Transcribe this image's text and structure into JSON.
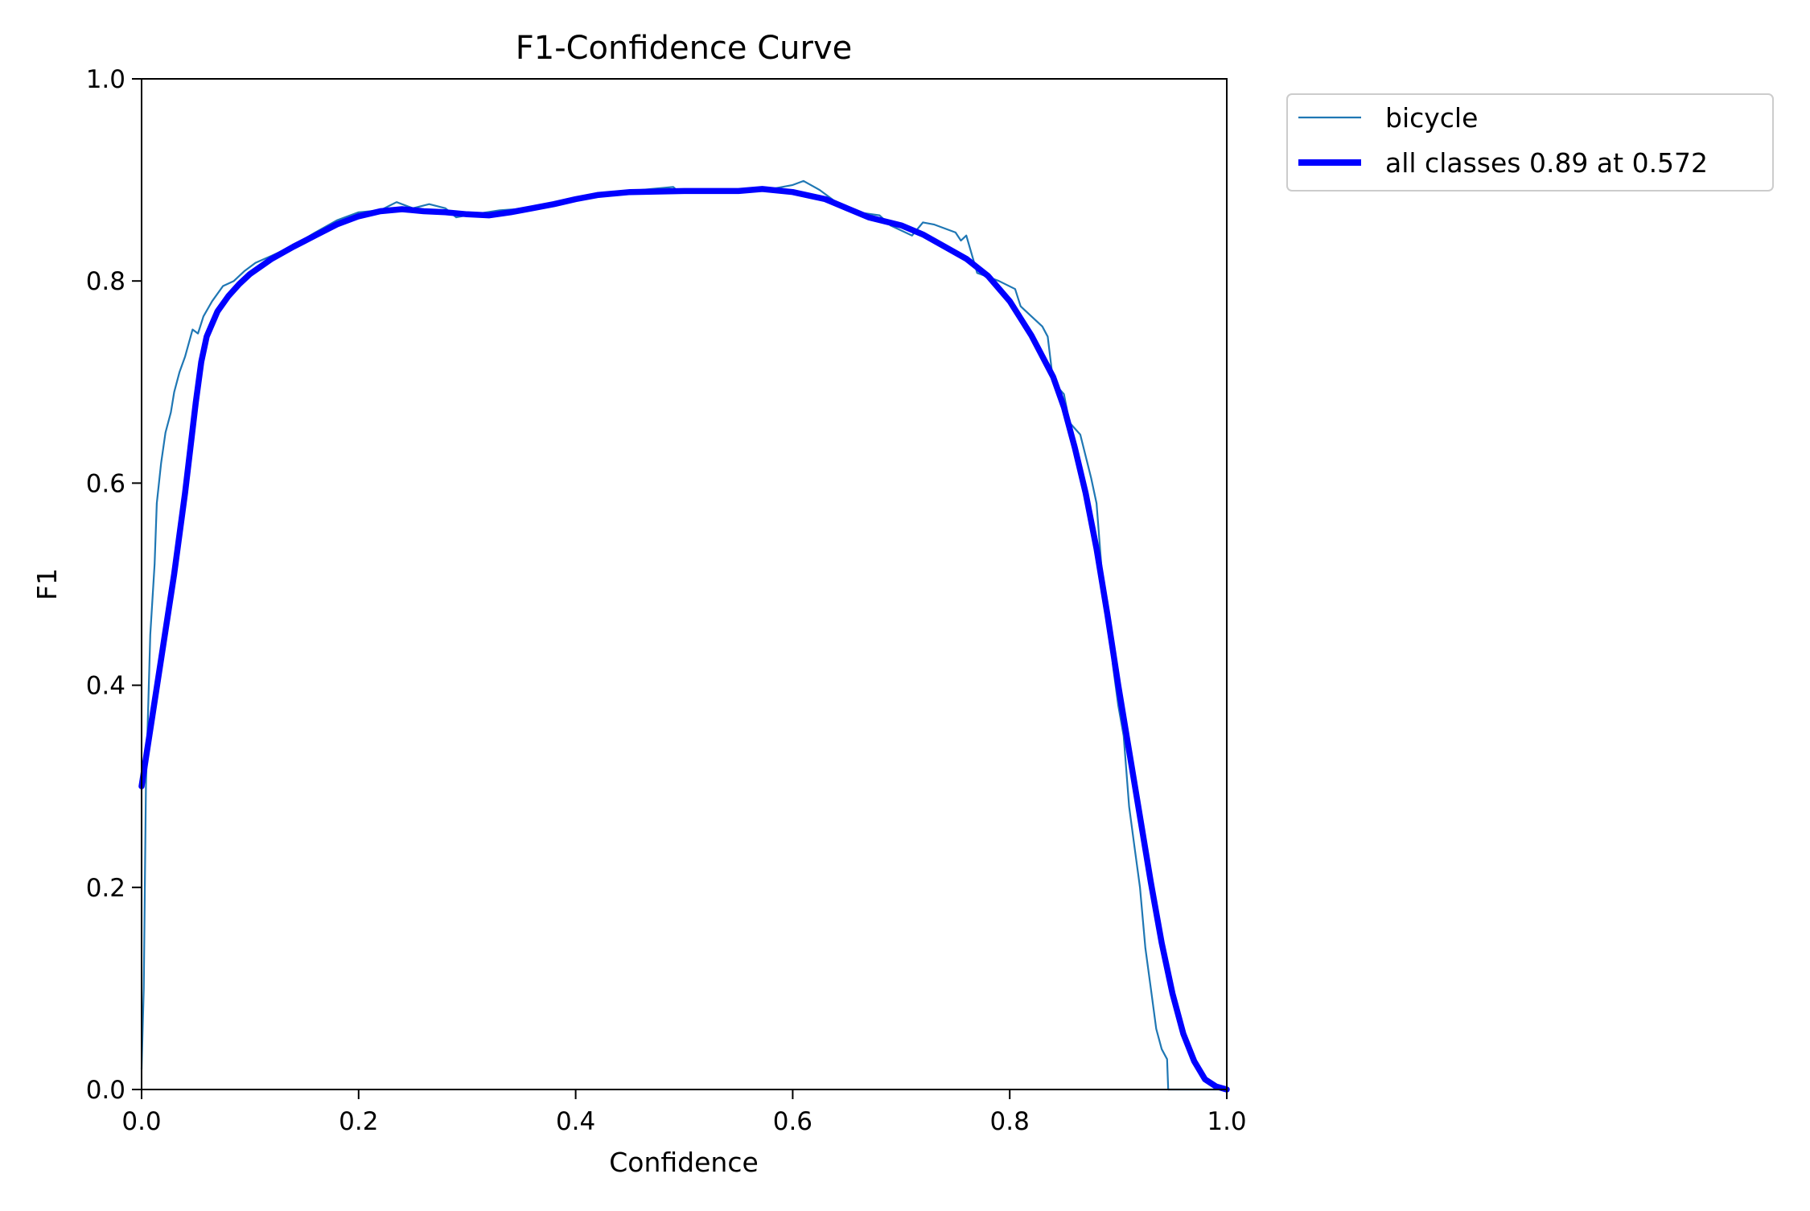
{
  "chart_data": {
    "type": "line",
    "title": "F1-Confidence Curve",
    "xlabel": "Confidence",
    "ylabel": "F1",
    "xlim": [
      0.0,
      1.0
    ],
    "ylim": [
      0.0,
      1.0
    ],
    "xticks": [
      "0.0",
      "0.2",
      "0.4",
      "0.6",
      "0.8",
      "1.0"
    ],
    "yticks": [
      "0.0",
      "0.2",
      "0.4",
      "0.6",
      "0.8",
      "1.0"
    ],
    "grid": false,
    "legend_position": "outside-top-right",
    "series": [
      {
        "name": "bicycle",
        "color": "#1f77b4",
        "points": [
          [
            0.0,
            0.02
          ],
          [
            0.002,
            0.1
          ],
          [
            0.004,
            0.3
          ],
          [
            0.008,
            0.45
          ],
          [
            0.012,
            0.52
          ],
          [
            0.014,
            0.58
          ],
          [
            0.018,
            0.62
          ],
          [
            0.022,
            0.65
          ],
          [
            0.027,
            0.67
          ],
          [
            0.03,
            0.69
          ],
          [
            0.035,
            0.71
          ],
          [
            0.04,
            0.725
          ],
          [
            0.047,
            0.752
          ],
          [
            0.052,
            0.748
          ],
          [
            0.057,
            0.765
          ],
          [
            0.065,
            0.78
          ],
          [
            0.075,
            0.795
          ],
          [
            0.085,
            0.8
          ],
          [
            0.095,
            0.81
          ],
          [
            0.105,
            0.818
          ],
          [
            0.12,
            0.825
          ],
          [
            0.14,
            0.835
          ],
          [
            0.16,
            0.848
          ],
          [
            0.18,
            0.86
          ],
          [
            0.2,
            0.868
          ],
          [
            0.22,
            0.87
          ],
          [
            0.235,
            0.878
          ],
          [
            0.25,
            0.872
          ],
          [
            0.265,
            0.876
          ],
          [
            0.28,
            0.872
          ],
          [
            0.29,
            0.863
          ],
          [
            0.3,
            0.865
          ],
          [
            0.33,
            0.87
          ],
          [
            0.36,
            0.872
          ],
          [
            0.38,
            0.878
          ],
          [
            0.4,
            0.882
          ],
          [
            0.42,
            0.886
          ],
          [
            0.45,
            0.889
          ],
          [
            0.47,
            0.891
          ],
          [
            0.49,
            0.893
          ],
          [
            0.495,
            0.888
          ],
          [
            0.52,
            0.889
          ],
          [
            0.55,
            0.889
          ],
          [
            0.58,
            0.891
          ],
          [
            0.6,
            0.895
          ],
          [
            0.61,
            0.899
          ],
          [
            0.625,
            0.89
          ],
          [
            0.64,
            0.878
          ],
          [
            0.66,
            0.868
          ],
          [
            0.68,
            0.865
          ],
          [
            0.69,
            0.855
          ],
          [
            0.71,
            0.845
          ],
          [
            0.72,
            0.858
          ],
          [
            0.73,
            0.856
          ],
          [
            0.75,
            0.848
          ],
          [
            0.755,
            0.84
          ],
          [
            0.76,
            0.845
          ],
          [
            0.77,
            0.808
          ],
          [
            0.79,
            0.8
          ],
          [
            0.805,
            0.792
          ],
          [
            0.81,
            0.775
          ],
          [
            0.82,
            0.765
          ],
          [
            0.83,
            0.755
          ],
          [
            0.835,
            0.745
          ],
          [
            0.84,
            0.7
          ],
          [
            0.85,
            0.688
          ],
          [
            0.855,
            0.66
          ],
          [
            0.865,
            0.648
          ],
          [
            0.875,
            0.605
          ],
          [
            0.88,
            0.58
          ],
          [
            0.885,
            0.51
          ],
          [
            0.89,
            0.48
          ],
          [
            0.895,
            0.42
          ],
          [
            0.9,
            0.38
          ],
          [
            0.905,
            0.35
          ],
          [
            0.91,
            0.28
          ],
          [
            0.915,
            0.24
          ],
          [
            0.92,
            0.2
          ],
          [
            0.925,
            0.14
          ],
          [
            0.93,
            0.1
          ],
          [
            0.935,
            0.06
          ],
          [
            0.94,
            0.04
          ],
          [
            0.945,
            0.03
          ],
          [
            0.946,
            0.0
          ],
          [
            1.0,
            0.0
          ]
        ]
      },
      {
        "name": "all classes 0.89 at 0.572",
        "color": "#0000ff",
        "points": [
          [
            0.0,
            0.3
          ],
          [
            0.01,
            0.37
          ],
          [
            0.02,
            0.44
          ],
          [
            0.03,
            0.51
          ],
          [
            0.04,
            0.59
          ],
          [
            0.05,
            0.68
          ],
          [
            0.055,
            0.72
          ],
          [
            0.06,
            0.745
          ],
          [
            0.07,
            0.77
          ],
          [
            0.08,
            0.785
          ],
          [
            0.09,
            0.797
          ],
          [
            0.1,
            0.807
          ],
          [
            0.12,
            0.822
          ],
          [
            0.14,
            0.834
          ],
          [
            0.16,
            0.845
          ],
          [
            0.18,
            0.856
          ],
          [
            0.2,
            0.864
          ],
          [
            0.22,
            0.869
          ],
          [
            0.24,
            0.871
          ],
          [
            0.26,
            0.869
          ],
          [
            0.28,
            0.868
          ],
          [
            0.3,
            0.866
          ],
          [
            0.32,
            0.865
          ],
          [
            0.34,
            0.868
          ],
          [
            0.36,
            0.872
          ],
          [
            0.38,
            0.876
          ],
          [
            0.4,
            0.881
          ],
          [
            0.42,
            0.885
          ],
          [
            0.45,
            0.888
          ],
          [
            0.5,
            0.889
          ],
          [
            0.55,
            0.889
          ],
          [
            0.572,
            0.891
          ],
          [
            0.6,
            0.888
          ],
          [
            0.63,
            0.881
          ],
          [
            0.65,
            0.872
          ],
          [
            0.67,
            0.863
          ],
          [
            0.7,
            0.855
          ],
          [
            0.72,
            0.846
          ],
          [
            0.74,
            0.834
          ],
          [
            0.76,
            0.822
          ],
          [
            0.78,
            0.805
          ],
          [
            0.8,
            0.78
          ],
          [
            0.82,
            0.746
          ],
          [
            0.84,
            0.705
          ],
          [
            0.85,
            0.675
          ],
          [
            0.86,
            0.635
          ],
          [
            0.87,
            0.59
          ],
          [
            0.88,
            0.535
          ],
          [
            0.89,
            0.47
          ],
          [
            0.9,
            0.4
          ],
          [
            0.91,
            0.335
          ],
          [
            0.92,
            0.27
          ],
          [
            0.93,
            0.205
          ],
          [
            0.94,
            0.145
          ],
          [
            0.95,
            0.095
          ],
          [
            0.96,
            0.055
          ],
          [
            0.97,
            0.028
          ],
          [
            0.98,
            0.01
          ],
          [
            0.99,
            0.003
          ],
          [
            1.0,
            0.0
          ]
        ]
      }
    ]
  }
}
